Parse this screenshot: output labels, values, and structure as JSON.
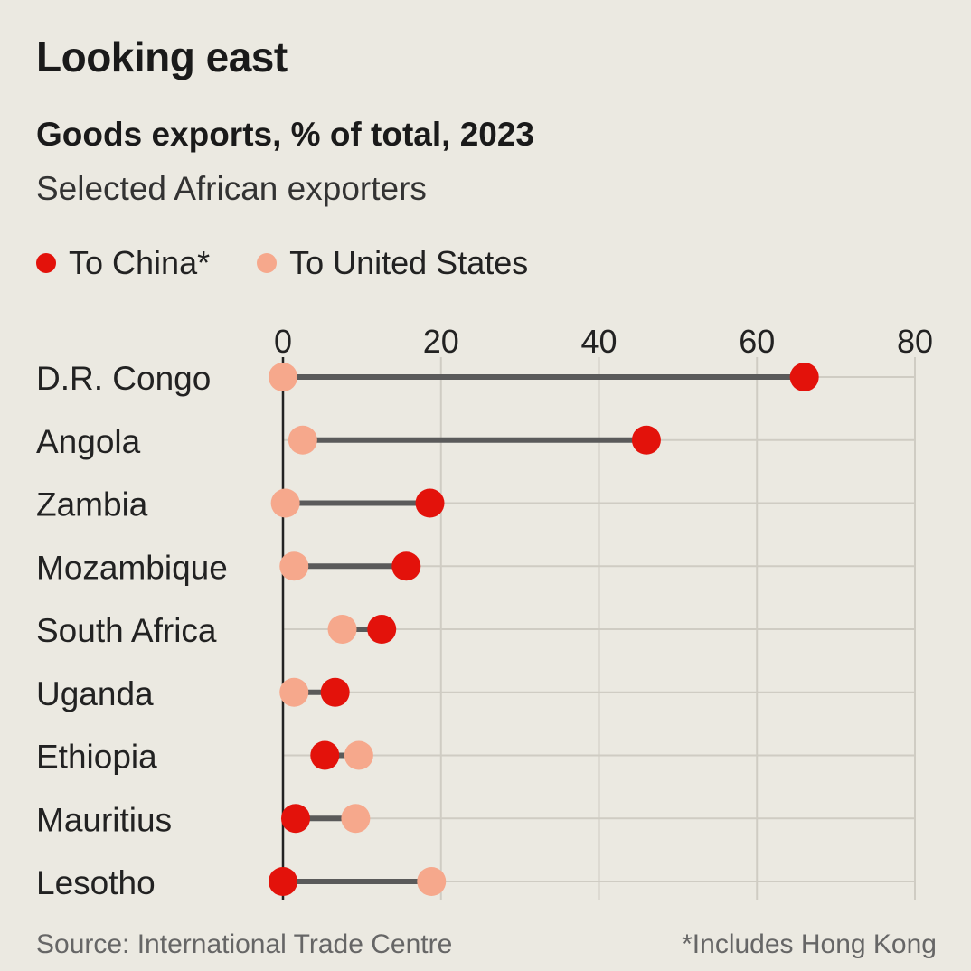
{
  "chart_data": {
    "type": "dot",
    "title": "Looking east",
    "subtitle": "Goods exports, % of total, 2023",
    "subtitle2": "Selected African exporters",
    "legend": [
      {
        "name": "To China*",
        "color": "#e3120b"
      },
      {
        "name": "To United States",
        "color": "#f6a88c"
      }
    ],
    "xlim": [
      0,
      80
    ],
    "xticks": [
      "0",
      "20",
      "40",
      "60",
      "80"
    ],
    "xtick_values": [
      0,
      20,
      40,
      60,
      80
    ],
    "categories": [
      "D.R. Congo",
      "Angola",
      "Zambia",
      "Mozambique",
      "South Africa",
      "Uganda",
      "Ethiopia",
      "Mauritius",
      "Lesotho"
    ],
    "series": [
      {
        "name": "To China*",
        "values": [
          66,
          46,
          18.6,
          15.6,
          12.5,
          6.6,
          5.3,
          1.6,
          0
        ]
      },
      {
        "name": "To United States",
        "values": [
          0,
          2.5,
          0.3,
          1.4,
          7.5,
          1.4,
          9.6,
          9.2,
          18.8
        ]
      }
    ],
    "source": "Source: International Trade Centre",
    "note": "*Includes Hong Kong"
  }
}
